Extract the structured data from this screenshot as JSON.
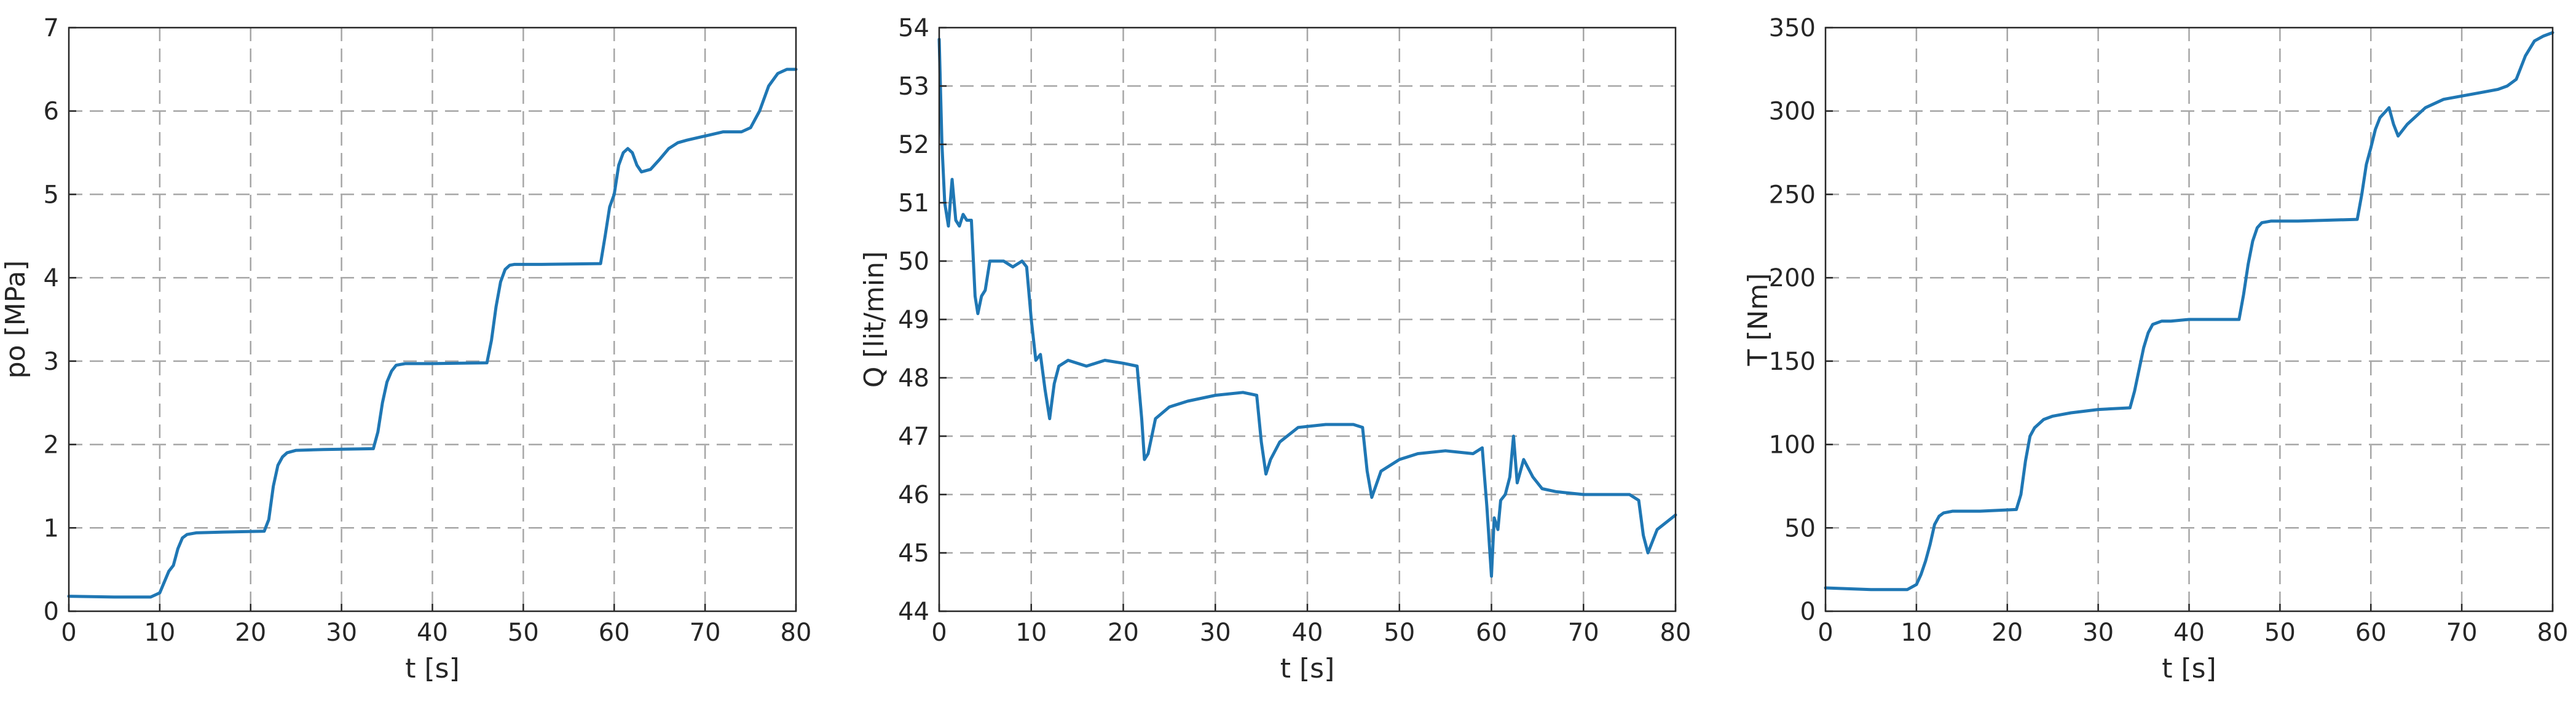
{
  "figure": {
    "line_color": "#1f77b4",
    "grid_color": "#a6a6a6",
    "axis_color": "#262626"
  },
  "chart_data": [
    {
      "type": "line",
      "xlabel": "t [s]",
      "ylabel": "po [MPa]",
      "xlim": [
        0,
        80
      ],
      "ylim": [
        0,
        7
      ],
      "xticks": [
        0,
        10,
        20,
        30,
        40,
        50,
        60,
        70,
        80
      ],
      "yticks": [
        0,
        1,
        2,
        3,
        4,
        5,
        6,
        7
      ],
      "grid": true,
      "series": [
        {
          "x": [
            0,
            5,
            9,
            10,
            10.5,
            11,
            11.5,
            12,
            12.5,
            13,
            14,
            17,
            21.5,
            22,
            22.5,
            23,
            23.5,
            24,
            25,
            28,
            33.5,
            34,
            34.5,
            35,
            35.5,
            36,
            37,
            40,
            46,
            46.5,
            47,
            47.5,
            48,
            48.5,
            49,
            52,
            58.5,
            59,
            59.5,
            60,
            60.5,
            61,
            61.5,
            62,
            62.5,
            63,
            64,
            65,
            66,
            67,
            68,
            70,
            72,
            74,
            75,
            76,
            77,
            78,
            79,
            80
          ],
          "y": [
            0.18,
            0.17,
            0.17,
            0.22,
            0.35,
            0.48,
            0.55,
            0.75,
            0.88,
            0.92,
            0.94,
            0.95,
            0.96,
            1.1,
            1.5,
            1.75,
            1.85,
            1.9,
            1.93,
            1.94,
            1.95,
            2.15,
            2.5,
            2.75,
            2.88,
            2.95,
            2.97,
            2.97,
            2.98,
            3.25,
            3.65,
            3.95,
            4.1,
            4.15,
            4.16,
            4.16,
            4.17,
            4.5,
            4.85,
            5.0,
            5.35,
            5.5,
            5.55,
            5.5,
            5.35,
            5.27,
            5.3,
            5.42,
            5.55,
            5.62,
            5.65,
            5.7,
            5.75,
            5.75,
            5.8,
            6.0,
            6.3,
            6.45,
            6.5,
            6.5
          ]
        }
      ]
    },
    {
      "type": "line",
      "xlabel": "t [s]",
      "ylabel": "Q [lit/min]",
      "xlim": [
        0,
        80
      ],
      "ylim": [
        44,
        54
      ],
      "xticks": [
        0,
        10,
        20,
        30,
        40,
        50,
        60,
        70,
        80
      ],
      "yticks": [
        44,
        45,
        46,
        47,
        48,
        49,
        50,
        51,
        52,
        53,
        54
      ],
      "grid": true,
      "series": [
        {
          "x": [
            0,
            0.3,
            0.6,
            1,
            1.4,
            1.8,
            2.2,
            2.6,
            3,
            3.5,
            3.9,
            4.2,
            4.6,
            5,
            5.5,
            6,
            7,
            8,
            9,
            9.5,
            10,
            10.5,
            11,
            11.5,
            12,
            12.5,
            13,
            14,
            16,
            18,
            20,
            21.5,
            22,
            22.3,
            22.7,
            23.5,
            25,
            27,
            30,
            33,
            34.5,
            35,
            35.5,
            36,
            37,
            39,
            42,
            45,
            46,
            46.5,
            47,
            48,
            50,
            52,
            55,
            58,
            59,
            59.5,
            60,
            60.3,
            60.7,
            61,
            61.5,
            62,
            62.4,
            62.8,
            63.5,
            64.5,
            65.5,
            67,
            70,
            73,
            75,
            76,
            76.5,
            77,
            78,
            80
          ],
          "y": [
            53.8,
            52.0,
            51.0,
            50.6,
            51.4,
            50.7,
            50.6,
            50.8,
            50.7,
            50.7,
            49.4,
            49.1,
            49.4,
            49.5,
            50.0,
            50.0,
            50.0,
            49.9,
            50.0,
            49.9,
            49.0,
            48.3,
            48.4,
            47.8,
            47.3,
            47.9,
            48.2,
            48.3,
            48.2,
            48.3,
            48.25,
            48.2,
            47.3,
            46.6,
            46.7,
            47.3,
            47.5,
            47.6,
            47.7,
            47.75,
            47.7,
            46.9,
            46.35,
            46.6,
            46.9,
            47.15,
            47.2,
            47.2,
            47.15,
            46.4,
            45.95,
            46.4,
            46.6,
            46.7,
            46.75,
            46.7,
            46.8,
            45.8,
            44.6,
            45.6,
            45.4,
            45.9,
            46.0,
            46.3,
            47.0,
            46.2,
            46.6,
            46.3,
            46.1,
            46.05,
            46.0,
            46.0,
            46.0,
            45.9,
            45.3,
            45.0,
            45.4,
            45.65
          ]
        }
      ]
    },
    {
      "type": "line",
      "xlabel": "t [s]",
      "ylabel": "T [Nm]",
      "xlim": [
        0,
        80
      ],
      "ylim": [
        0,
        350
      ],
      "xticks": [
        0,
        10,
        20,
        30,
        40,
        50,
        60,
        70,
        80
      ],
      "yticks": [
        0,
        50,
        100,
        150,
        200,
        250,
        300,
        350
      ],
      "grid": true,
      "series": [
        {
          "x": [
            0,
            5,
            9,
            10,
            10.5,
            11,
            11.5,
            12,
            12.5,
            13,
            14,
            17,
            21,
            21.5,
            22,
            22.5,
            23,
            24,
            25,
            27,
            30,
            33.5,
            34,
            34.5,
            35,
            35.5,
            36,
            37,
            38,
            40,
            45.5,
            46,
            46.5,
            47,
            47.5,
            48,
            49,
            52,
            58.5,
            59,
            59.5,
            60,
            60.5,
            61,
            62,
            62.5,
            63,
            64,
            66,
            68,
            70,
            72,
            74,
            75,
            76,
            77,
            78,
            79,
            80
          ],
          "y": [
            14,
            13,
            13,
            16,
            22,
            30,
            40,
            52,
            57,
            59,
            60,
            60,
            61,
            70,
            90,
            105,
            110,
            115,
            117,
            119,
            121,
            122,
            132,
            145,
            158,
            167,
            172,
            174,
            174,
            175,
            175,
            190,
            208,
            222,
            230,
            233,
            234,
            234,
            235,
            250,
            268,
            278,
            289,
            296,
            302,
            292,
            285,
            292,
            302,
            307,
            309,
            311,
            313,
            315,
            319,
            333,
            342,
            345,
            347
          ]
        }
      ]
    }
  ]
}
